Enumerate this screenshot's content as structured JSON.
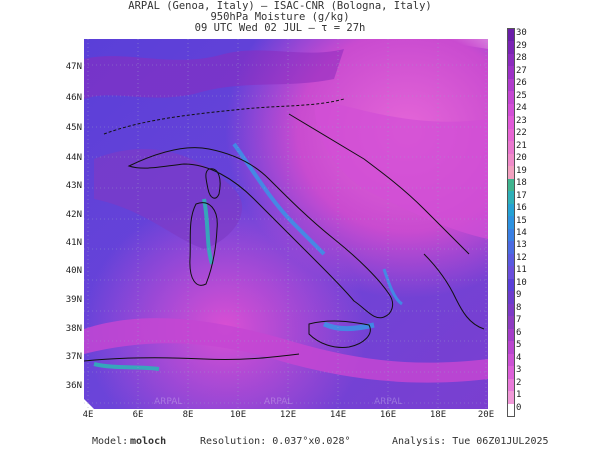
{
  "header": {
    "line1": "ARPAL (Genoa, Italy)  –  ISAC-CNR (Bologna, Italy)",
    "line2": "950hPa Moisture (g/kg)",
    "line3": "09 UTC Wed 02 JUL  –  τ = 27h"
  },
  "map": {
    "lat_labels": [
      "47N",
      "46N",
      "45N",
      "44N",
      "43N",
      "42N",
      "41N",
      "40N",
      "39N",
      "38N",
      "37N",
      "36N"
    ],
    "lon_labels": [
      "4E",
      "6E",
      "8E",
      "10E",
      "12E",
      "14E",
      "16E",
      "18E",
      "20E"
    ],
    "watermark": "ARPAL",
    "land_color": "#5a3fd8",
    "moist_color": "#c94bd0",
    "high_color": "#e25fd6",
    "coast_color": "#111111",
    "low_moisture_color": "#3e8fe6"
  },
  "colorbar": {
    "labels": [
      "30",
      "29",
      "28",
      "27",
      "26",
      "25",
      "24",
      "23",
      "22",
      "21",
      "20",
      "19",
      "18",
      "17",
      "16",
      "15",
      "14",
      "13",
      "12",
      "11",
      "10",
      "9",
      "8",
      "7",
      "6",
      "5",
      "4",
      "3",
      "2",
      "1",
      "0"
    ],
    "colors": [
      "#6a1ea8",
      "#7b24b4",
      "#8c2bbd",
      "#9d31c6",
      "#b03ccc",
      "#c447d2",
      "#d24fd6",
      "#e05ad8",
      "#e766d4",
      "#ea78cf",
      "#ef8bc9",
      "#f2a1c0",
      "#3fb48f",
      "#2fb0b8",
      "#26a2d4",
      "#2d92e0",
      "#3a7fe3",
      "#4b6be2",
      "#5a5ae0",
      "#6a4fdc",
      "#5a3fd8",
      "#6b3ccd",
      "#7d3ac6",
      "#8e3cc1",
      "#a43ec8",
      "#b946cf",
      "#cc52d4",
      "#dc60d8",
      "#e87ad9",
      "#f199d8",
      "#ffffff"
    ]
  },
  "footer": {
    "model_label": "Model:",
    "model_name": "moloch",
    "resolution": "Resolution: 0.037°x0.028°",
    "analysis": "Analysis: Tue 06Z01JUL2025"
  }
}
